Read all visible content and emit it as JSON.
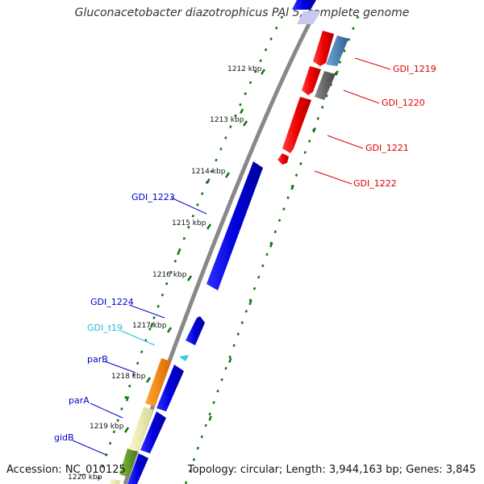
{
  "header": {
    "title": "Gluconacetobacter diazotrophicus PAl 5, complete genome"
  },
  "footer": {
    "accession": "Accession: NC_010125",
    "topology": "Topology: circular; Length: 3,944,163 bp; Genes: 3,845"
  },
  "ticks": [
    "1212 kbp",
    "1213 kbp",
    "1214 kbp",
    "1215 kbp",
    "1216 kbp",
    "1217 kbp",
    "1218 kbp",
    "1219 kbp",
    "1220 kbp"
  ],
  "labels": {
    "GDI_1219": "GDI_1219",
    "GDI_1220": "GDI_1220",
    "GDI_1221": "GDI_1221",
    "GDI_1222": "GDI_1222",
    "GDI_1223": "GDI_1223",
    "GDI_1224": "GDI_1224",
    "GDI_t19": "GDI_t19",
    "parB": "parB",
    "parA": "parA",
    "gidB": "gidB"
  },
  "colors": {
    "reverse_gene": "#ee0000",
    "forward_gene": "#0000dd",
    "trna": "#33ccdd",
    "parB": "#ff8800",
    "parA": "#eeeeaa",
    "gidB": "#669922",
    "gc_skew": "#117711",
    "backbone": "#888888",
    "steelblue": "#4682b4",
    "gray_feature": "#666666"
  }
}
